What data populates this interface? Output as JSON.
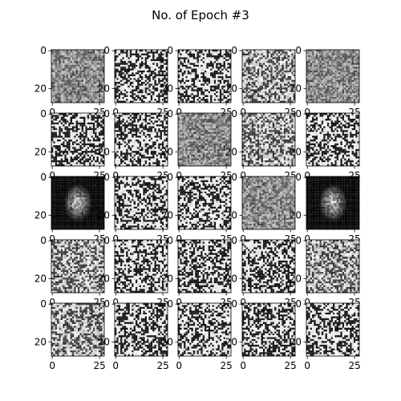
{
  "figure": {
    "title": "No. of Epoch #3"
  },
  "chart_data": {
    "type": "heatmap",
    "title": "No. of Epoch #3",
    "layout": {
      "rows": 5,
      "cols": 5
    },
    "image_size": [
      28,
      28
    ],
    "colormap": "gray",
    "x_ticks": [
      0,
      25
    ],
    "y_ticks": [
      0,
      20
    ],
    "x_tick_labels": [
      "0",
      "25"
    ],
    "y_tick_labels": [
      "0",
      "20"
    ],
    "panels": [
      {
        "row": 0,
        "col": 0,
        "style": "gray-noise"
      },
      {
        "row": 0,
        "col": 1,
        "style": "binary-noise"
      },
      {
        "row": 0,
        "col": 2,
        "style": "binary-noise"
      },
      {
        "row": 0,
        "col": 3,
        "style": "binary-noise-soft"
      },
      {
        "row": 0,
        "col": 4,
        "style": "gray-noise"
      },
      {
        "row": 1,
        "col": 0,
        "style": "binary-noise"
      },
      {
        "row": 1,
        "col": 1,
        "style": "binary-noise"
      },
      {
        "row": 1,
        "col": 2,
        "style": "gray-noise"
      },
      {
        "row": 1,
        "col": 3,
        "style": "binary-noise-soft"
      },
      {
        "row": 1,
        "col": 4,
        "style": "binary-noise"
      },
      {
        "row": 2,
        "col": 0,
        "style": "dark-blob"
      },
      {
        "row": 2,
        "col": 1,
        "style": "binary-noise"
      },
      {
        "row": 2,
        "col": 2,
        "style": "binary-noise"
      },
      {
        "row": 2,
        "col": 3,
        "style": "gray-noise"
      },
      {
        "row": 2,
        "col": 4,
        "style": "dark-blob"
      },
      {
        "row": 3,
        "col": 0,
        "style": "binary-noise-soft"
      },
      {
        "row": 3,
        "col": 1,
        "style": "binary-noise"
      },
      {
        "row": 3,
        "col": 2,
        "style": "binary-noise"
      },
      {
        "row": 3,
        "col": 3,
        "style": "binary-noise"
      },
      {
        "row": 3,
        "col": 4,
        "style": "binary-noise-soft"
      },
      {
        "row": 4,
        "col": 0,
        "style": "binary-noise-soft"
      },
      {
        "row": 4,
        "col": 1,
        "style": "binary-noise"
      },
      {
        "row": 4,
        "col": 2,
        "style": "binary-noise"
      },
      {
        "row": 4,
        "col": 3,
        "style": "binary-noise"
      },
      {
        "row": 4,
        "col": 4,
        "style": "binary-noise"
      }
    ]
  }
}
